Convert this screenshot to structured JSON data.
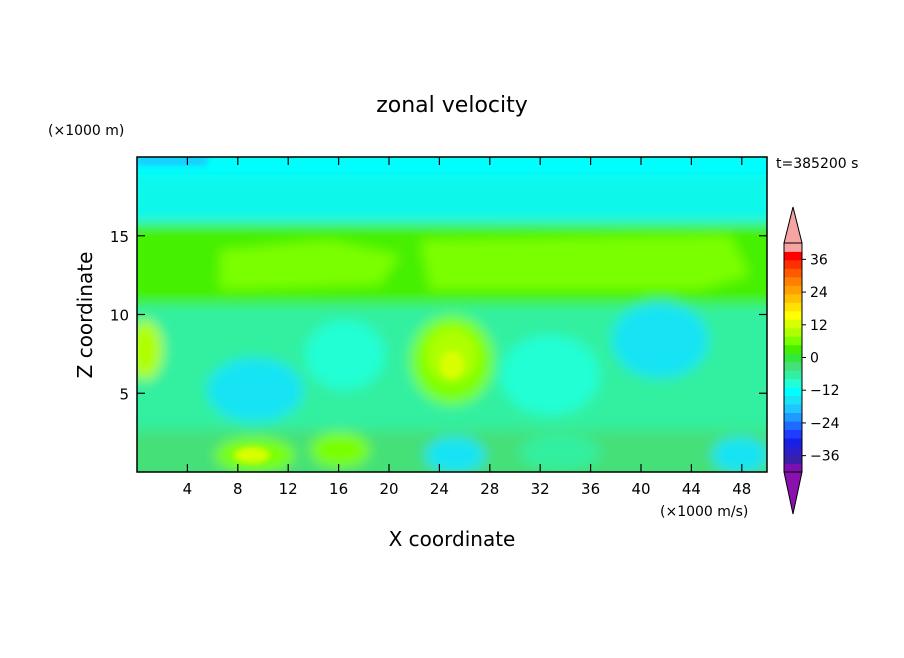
{
  "chart_data": {
    "type": "heatmap",
    "title": "zonal velocity",
    "xlabel": "X coordinate",
    "ylabel": "Z coordinate",
    "y_unit_label": "(×1000 m)",
    "colorbar_unit_label": "(×1000 m/s)",
    "time_label": "t=385200 s",
    "xlim": [
      0,
      50
    ],
    "ylim": [
      0,
      20
    ],
    "x_ticks": [
      4,
      8,
      12,
      16,
      20,
      24,
      28,
      32,
      36,
      40,
      44,
      48
    ],
    "x_tick_labels": [
      "4",
      "8",
      "12",
      "16",
      "20",
      "24",
      "28",
      "32",
      "36",
      "40",
      "44",
      "48"
    ],
    "y_ticks": [
      5,
      10,
      15
    ],
    "y_tick_labels": [
      "5",
      "10",
      "15"
    ],
    "colorbar": {
      "levels": [
        -42,
        -39,
        -36,
        -33,
        -30,
        -27,
        -24,
        -21,
        -18,
        -15,
        -12,
        -9,
        -6,
        -3,
        0,
        3,
        6,
        9,
        12,
        15,
        18,
        21,
        24,
        27,
        30,
        33,
        36,
        39,
        42
      ],
      "colors": [
        "#7b0fb0",
        "#3c1fa8",
        "#2a1fc8",
        "#1a1fe6",
        "#1f3dff",
        "#1f6bff",
        "#1f9bff",
        "#1fc6ff",
        "#18e4f4",
        "#00ffff",
        "#22ffd4",
        "#33f0a0",
        "#44e078",
        "#33e83c",
        "#44f000",
        "#7aff00",
        "#b0ff00",
        "#d8ff00",
        "#ffff00",
        "#ffe000",
        "#ffc000",
        "#ffa000",
        "#ff8000",
        "#ff5a00",
        "#ff3000",
        "#ff0000",
        "#f5a3a3"
      ],
      "under_color": "#8b10b0",
      "over_color": "#f5a3a3",
      "labels": [
        "36",
        "24",
        "12",
        "0",
        "−12",
        "−24",
        "−36"
      ],
      "label_values": [
        36,
        24,
        12,
        0,
        -12,
        -24,
        -36
      ]
    }
  }
}
